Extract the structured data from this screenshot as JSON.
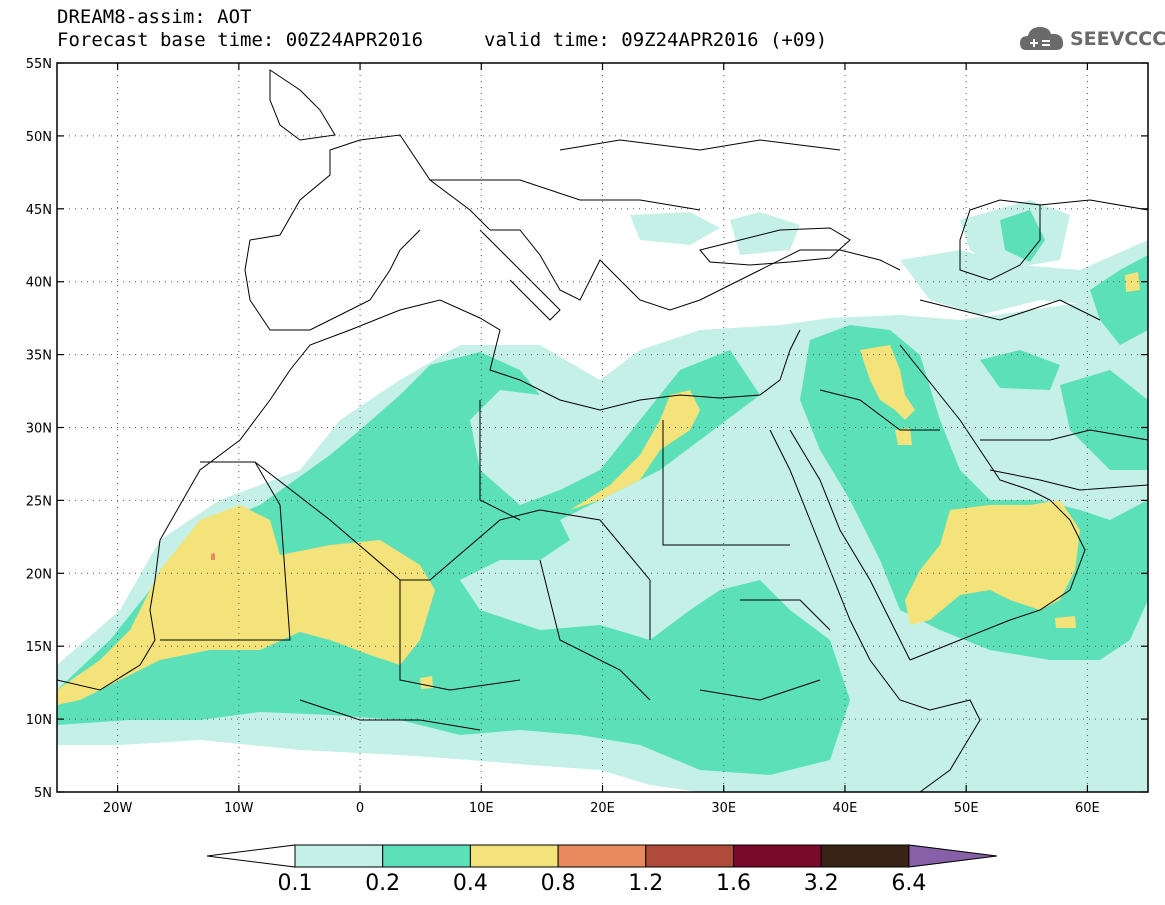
{
  "header": {
    "line1": "DREAM8-assim: AOT",
    "base_time": "Forecast base time: 00Z24APR2016",
    "valid_time": "valid time: 09Z24APR2016 (+09)"
  },
  "logo": {
    "text": "SEEVCCC",
    "icon": "cloud-icon"
  },
  "map": {
    "lon_range": [
      -25,
      65
    ],
    "lat_range": [
      5,
      55
    ],
    "lat_ticks": [
      "55N",
      "50N",
      "45N",
      "40N",
      "35N",
      "30N",
      "25N",
      "20N",
      "15N",
      "10N",
      "5N"
    ],
    "lon_ticks": [
      "20W",
      "10W",
      "0",
      "10E",
      "20E",
      "30E",
      "40E",
      "50E",
      "60E"
    ],
    "gridlines": "dotted"
  },
  "colorbar": {
    "labels": [
      "0.1",
      "0.2",
      "0.4",
      "0.8",
      "1.2",
      "1.6",
      "3.2",
      "6.4"
    ],
    "colors": [
      "#ffffff",
      "#c4f0e8",
      "#5ce0b8",
      "#f4e27a",
      "#e88a5e",
      "#b04a3a",
      "#7a0a2a",
      "#3a2418",
      "#8860a8"
    ]
  }
}
